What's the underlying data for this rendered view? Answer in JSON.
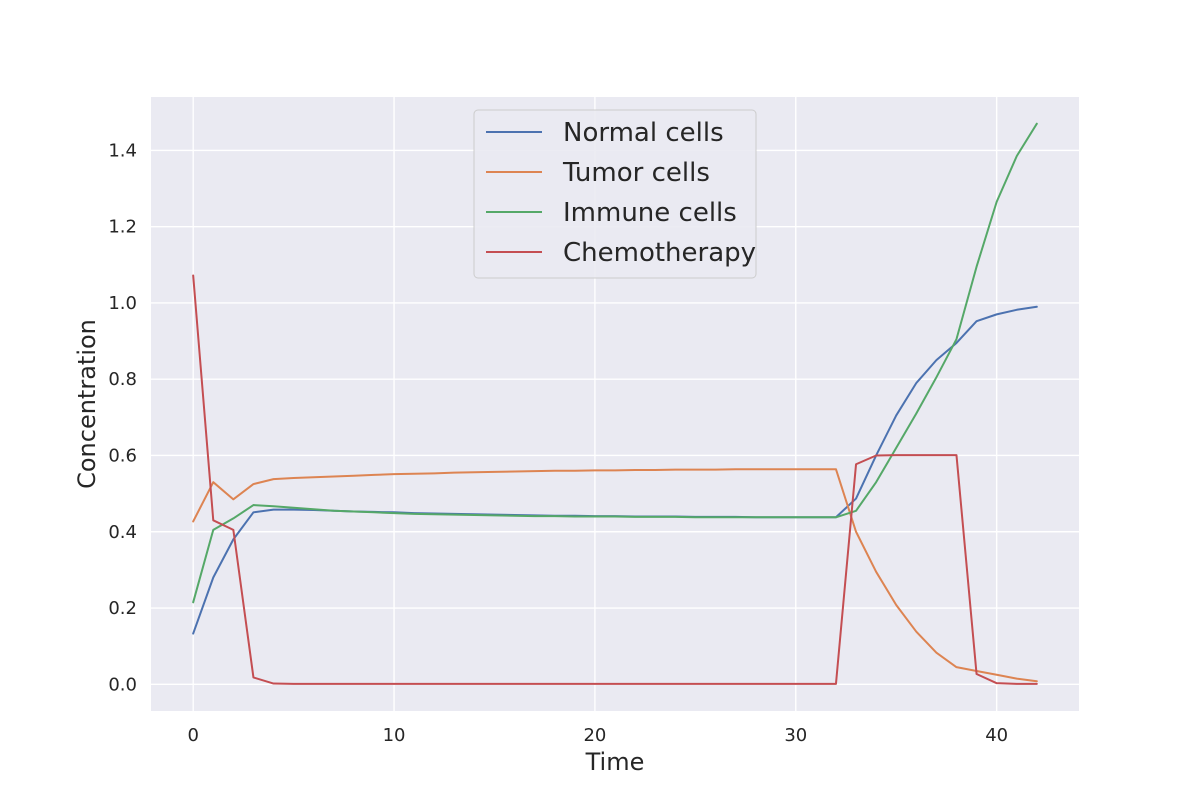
{
  "chart_data": {
    "type": "line",
    "title": "",
    "xlabel": "Time",
    "ylabel": "Concentration",
    "xlim": [
      -2.1,
      44.1
    ],
    "ylim": [
      -0.07,
      1.54
    ],
    "xticks": [
      0,
      10,
      20,
      30,
      40
    ],
    "xtick_labels": [
      "0",
      "10",
      "20",
      "30",
      "40"
    ],
    "yticks": [
      0.0,
      0.2,
      0.4,
      0.6,
      0.8,
      1.0,
      1.2,
      1.4
    ],
    "ytick_labels": [
      "0.0",
      "0.2",
      "0.4",
      "0.6",
      "0.8",
      "1.0",
      "1.2",
      "1.4"
    ],
    "grid": true,
    "legend_position": "top-center",
    "x": [
      0,
      1,
      2,
      3,
      4,
      5,
      6,
      7,
      8,
      9,
      10,
      11,
      12,
      13,
      14,
      15,
      16,
      17,
      18,
      19,
      20,
      21,
      22,
      23,
      24,
      25,
      26,
      27,
      28,
      29,
      30,
      31,
      32,
      33,
      34,
      35,
      36,
      37,
      38,
      39,
      40,
      41,
      42
    ],
    "series": [
      {
        "name": "Normal cells",
        "color": "#4c72b0",
        "values": [
          0.133,
          0.28,
          0.38,
          0.451,
          0.458,
          0.458,
          0.457,
          0.455,
          0.453,
          0.452,
          0.451,
          0.449,
          0.448,
          0.447,
          0.446,
          0.445,
          0.444,
          0.443,
          0.442,
          0.442,
          0.441,
          0.441,
          0.44,
          0.44,
          0.44,
          0.439,
          0.439,
          0.439,
          0.438,
          0.438,
          0.438,
          0.438,
          0.438,
          0.487,
          0.6,
          0.705,
          0.79,
          0.85,
          0.895,
          0.952,
          0.97,
          0.982,
          0.99
        ]
      },
      {
        "name": "Tumor cells",
        "color": "#dd8452",
        "values": [
          0.427,
          0.53,
          0.485,
          0.525,
          0.538,
          0.541,
          0.543,
          0.545,
          0.547,
          0.549,
          0.551,
          0.552,
          0.553,
          0.555,
          0.556,
          0.557,
          0.558,
          0.559,
          0.56,
          0.56,
          0.561,
          0.561,
          0.562,
          0.562,
          0.563,
          0.563,
          0.563,
          0.564,
          0.564,
          0.564,
          0.564,
          0.564,
          0.564,
          0.4,
          0.295,
          0.208,
          0.138,
          0.083,
          0.045,
          0.035,
          0.025,
          0.015,
          0.008
        ]
      },
      {
        "name": "Immune cells",
        "color": "#55a868",
        "values": [
          0.215,
          0.405,
          0.435,
          0.47,
          0.467,
          0.463,
          0.459,
          0.455,
          0.453,
          0.451,
          0.449,
          0.447,
          0.446,
          0.445,
          0.444,
          0.443,
          0.442,
          0.441,
          0.441,
          0.44,
          0.44,
          0.44,
          0.439,
          0.439,
          0.439,
          0.438,
          0.438,
          0.438,
          0.438,
          0.438,
          0.438,
          0.438,
          0.438,
          0.455,
          0.53,
          0.62,
          0.71,
          0.805,
          0.905,
          1.095,
          1.265,
          1.385,
          1.47
        ]
      },
      {
        "name": "Chemotherapy",
        "color": "#c44e52",
        "values": [
          1.072,
          0.43,
          0.405,
          0.018,
          0.002,
          0.001,
          0.001,
          0.001,
          0.001,
          0.001,
          0.001,
          0.001,
          0.001,
          0.001,
          0.001,
          0.001,
          0.001,
          0.001,
          0.001,
          0.001,
          0.001,
          0.001,
          0.001,
          0.001,
          0.001,
          0.001,
          0.001,
          0.001,
          0.001,
          0.001,
          0.001,
          0.001,
          0.001,
          0.577,
          0.6,
          0.601,
          0.601,
          0.601,
          0.601,
          0.027,
          0.003,
          0.001,
          0.001
        ]
      }
    ]
  }
}
